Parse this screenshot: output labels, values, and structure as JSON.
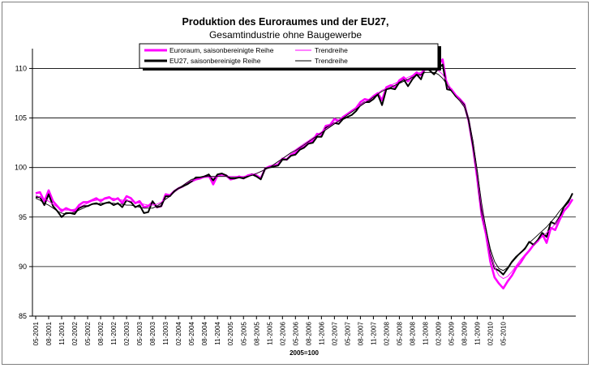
{
  "chart_data": {
    "type": "line",
    "title": "Produktion des Euroraumes und der EU27,",
    "subtitle": "Gesamtindustrie ohne Baugewerbe",
    "xlabel": "2005=100",
    "ylabel": "",
    "ylim": [
      85,
      112
    ],
    "yticks": [
      85,
      90,
      95,
      100,
      105,
      110
    ],
    "grid": true,
    "legend_position": "top",
    "x_tick_labels": [
      "05-2001",
      "08-2001",
      "11-2001",
      "02-2002",
      "05-2002",
      "08-2002",
      "11-2002",
      "02-2003",
      "05-2003",
      "08-2003",
      "11-2003",
      "02-2004",
      "05-2004",
      "08-2004",
      "11-2004",
      "02-2005",
      "05-2005",
      "08-2005",
      "11-2005",
      "02-2006",
      "05-2006",
      "08-2006",
      "11-2006",
      "02-2007",
      "05-2007",
      "08-2007",
      "11-2007",
      "02-2008",
      "05-2008",
      "08-2008",
      "11-2008",
      "02-2009",
      "05-2009",
      "08-2009",
      "11-2009",
      "02-2010",
      "05-2010"
    ],
    "x_start": "05-2001",
    "series": [
      {
        "name": "Euroraum, saisonbereinigte Reihe",
        "color": "#ff00ff",
        "values": [
          97.4,
          97.5,
          96.6,
          97.7,
          96.6,
          96.1,
          95.6,
          95.9,
          95.7,
          95.6,
          96.2,
          96.5,
          96.5,
          96.7,
          96.9,
          96.6,
          96.9,
          97.0,
          96.7,
          96.9,
          96.4,
          97.1,
          96.9,
          96.4,
          96.6,
          96.0,
          96.1,
          96.5,
          96.0,
          96.1,
          97.3,
          97.2,
          97.6,
          97.9,
          98.1,
          98.4,
          98.6,
          98.8,
          98.9,
          99.1,
          99.2,
          98.3,
          99.2,
          99.3,
          99.2,
          98.8,
          98.9,
          99.1,
          98.9,
          99.2,
          99.3,
          99.2,
          98.9,
          99.9,
          100.1,
          100.2,
          100.3,
          100.9,
          100.8,
          101.3,
          101.5,
          102.0,
          102.1,
          102.5,
          102.7,
          103.4,
          103.3,
          104.2,
          104.3,
          104.9,
          104.7,
          105.1,
          105.4,
          105.7,
          106.0,
          106.6,
          106.9,
          106.8,
          107.2,
          107.5,
          106.8,
          108.1,
          108.3,
          108.1,
          108.8,
          109.1,
          108.7,
          109.2,
          109.6,
          109.3,
          110.3,
          110.0,
          109.9,
          110.4,
          110.9,
          108.2,
          107.9,
          107.3,
          106.9,
          106.4,
          104.7,
          102.1,
          98.9,
          95.2,
          93.3,
          90.5,
          88.9,
          88.3,
          87.8,
          88.5,
          89.1,
          89.9,
          90.4,
          91.1,
          91.6,
          92.2,
          92.6,
          93.3,
          92.4,
          93.9,
          93.7,
          94.7,
          95.6,
          96.1,
          96.8
        ]
      },
      {
        "name": "Trendreihe",
        "color": "#ff00ff",
        "values": [
          97.2,
          97.0,
          96.8,
          96.6,
          96.3,
          96.0,
          95.8,
          95.7,
          95.7,
          95.8,
          96.0,
          96.2,
          96.4,
          96.6,
          96.7,
          96.8,
          96.8,
          96.9,
          96.9,
          96.8,
          96.7,
          96.7,
          96.6,
          96.5,
          96.4,
          96.3,
          96.2,
          96.2,
          96.3,
          96.5,
          96.8,
          97.1,
          97.5,
          97.9,
          98.2,
          98.5,
          98.7,
          98.8,
          98.9,
          99.0,
          99.0,
          99.0,
          99.1,
          99.1,
          99.1,
          99.1,
          99.1,
          99.1,
          99.1,
          99.2,
          99.3,
          99.4,
          99.6,
          99.8,
          100.0,
          100.3,
          100.6,
          100.9,
          101.2,
          101.5,
          101.8,
          102.1,
          102.4,
          102.7,
          103.0,
          103.3,
          103.6,
          103.9,
          104.2,
          104.5,
          104.8,
          105.1,
          105.4,
          105.7,
          106.0,
          106.3,
          106.6,
          106.9,
          107.2,
          107.5,
          107.8,
          108.0,
          108.3,
          108.5,
          108.7,
          108.9,
          109.1,
          109.3,
          109.5,
          109.6,
          109.8,
          109.9,
          109.9,
          109.8,
          109.4,
          108.7,
          107.9,
          107.3,
          106.8,
          106.2,
          104.9,
          102.6,
          99.3,
          96.0,
          93.4,
          91.3,
          89.9,
          89.1,
          88.8,
          89.0,
          89.5,
          90.1,
          90.7,
          91.2,
          91.7,
          92.2,
          92.6,
          93.0,
          93.4,
          93.8,
          94.3,
          94.9,
          95.5,
          96.1,
          96.7
        ]
      },
      {
        "name": "EU27, saisonbereinigte Reihe",
        "color": "#000000",
        "values": [
          97.0,
          97.0,
          96.2,
          97.3,
          96.1,
          95.6,
          95.0,
          95.4,
          95.4,
          95.3,
          95.9,
          96.1,
          96.1,
          96.3,
          96.4,
          96.2,
          96.4,
          96.5,
          96.2,
          96.4,
          96.0,
          96.7,
          96.5,
          96.0,
          96.2,
          95.4,
          95.5,
          96.6,
          96.0,
          96.1,
          97.1,
          97.1,
          97.6,
          97.9,
          98.1,
          98.3,
          98.6,
          99.0,
          99.0,
          99.1,
          99.3,
          98.7,
          99.3,
          99.4,
          99.2,
          98.9,
          98.9,
          99.0,
          98.9,
          99.1,
          99.3,
          99.1,
          98.8,
          99.9,
          100.0,
          100.1,
          100.2,
          100.8,
          100.8,
          101.2,
          101.3,
          101.8,
          102.0,
          102.4,
          102.5,
          103.1,
          103.1,
          104.0,
          104.2,
          104.5,
          104.4,
          104.9,
          105.1,
          105.3,
          105.7,
          106.3,
          106.6,
          106.6,
          106.9,
          107.4,
          106.3,
          107.9,
          108.0,
          107.9,
          108.6,
          108.9,
          108.2,
          108.9,
          109.4,
          108.9,
          110.1,
          109.8,
          109.4,
          110.0,
          110.4,
          107.9,
          107.8,
          107.2,
          106.8,
          106.3,
          104.8,
          102.3,
          99.4,
          95.7,
          93.7,
          91.3,
          89.8,
          89.6,
          89.2,
          89.8,
          90.5,
          91.0,
          91.4,
          91.8,
          92.5,
          92.2,
          92.7,
          93.4,
          93.0,
          94.5,
          94.3,
          95.0,
          96.0,
          96.5,
          97.4
        ]
      },
      {
        "name": "Trendreihe",
        "color": "#000000",
        "values": [
          96.9,
          96.7,
          96.4,
          96.2,
          95.9,
          95.6,
          95.4,
          95.3,
          95.4,
          95.5,
          95.7,
          95.9,
          96.1,
          96.3,
          96.3,
          96.4,
          96.4,
          96.4,
          96.4,
          96.3,
          96.3,
          96.2,
          96.2,
          96.1,
          96.0,
          95.9,
          95.9,
          95.9,
          96.1,
          96.4,
          96.8,
          97.1,
          97.5,
          97.9,
          98.2,
          98.5,
          98.8,
          98.9,
          99.0,
          99.1,
          99.1,
          99.1,
          99.1,
          99.1,
          99.1,
          99.0,
          99.0,
          99.0,
          99.0,
          99.1,
          99.2,
          99.4,
          99.6,
          99.8,
          100.0,
          100.3,
          100.6,
          100.9,
          101.2,
          101.5,
          101.7,
          102.0,
          102.3,
          102.6,
          102.9,
          103.2,
          103.5,
          103.8,
          104.1,
          104.4,
          104.7,
          105.0,
          105.3,
          105.6,
          105.9,
          106.2,
          106.5,
          106.8,
          107.1,
          107.4,
          107.7,
          107.9,
          108.1,
          108.3,
          108.5,
          108.7,
          108.9,
          109.1,
          109.3,
          109.4,
          109.6,
          109.6,
          109.6,
          109.4,
          109.0,
          108.4,
          107.7,
          107.2,
          106.7,
          106.1,
          104.9,
          102.7,
          99.6,
          96.4,
          93.8,
          91.8,
          90.5,
          89.8,
          89.6,
          89.9,
          90.4,
          90.9,
          91.4,
          91.9,
          92.4,
          92.8,
          93.2,
          93.6,
          94.0,
          94.5,
          95.0,
          95.6,
          96.1,
          96.7,
          97.3
        ]
      }
    ]
  }
}
